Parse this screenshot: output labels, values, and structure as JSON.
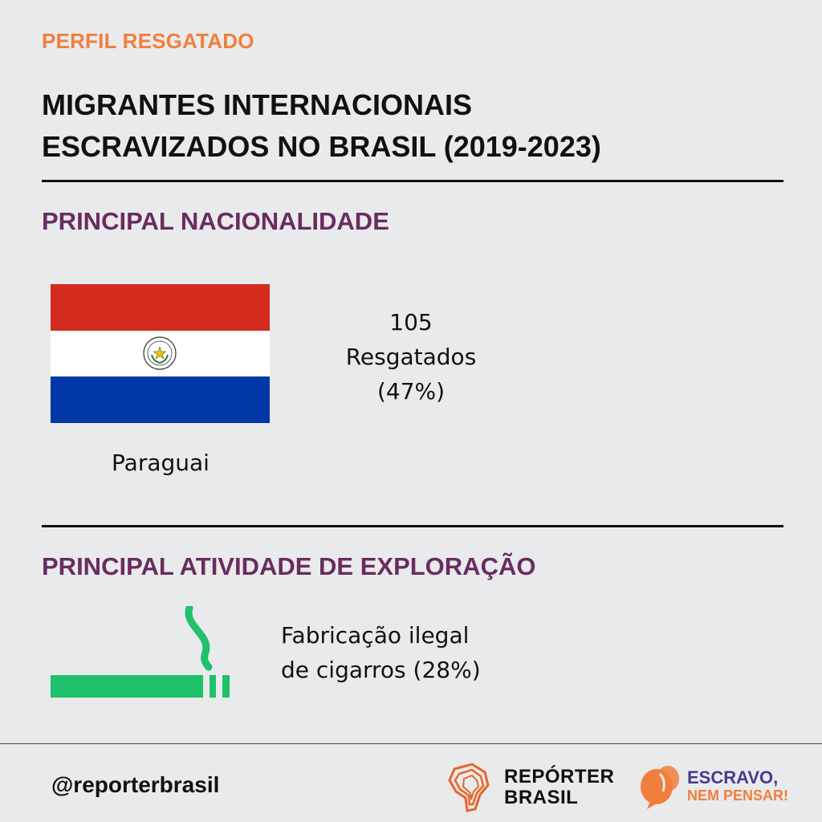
{
  "header": {
    "kicker": "PERFIL RESGATADO",
    "title_line1": "MIGRANTES INTERNACIONAIS",
    "title_line2": "ESCRAVIZADOS NO BRASIL (2019-2023)"
  },
  "nationality": {
    "heading": "PRINCIPAL NACIONALIDADE",
    "country": "Paraguai",
    "count": "105",
    "count_label": "Resgatados",
    "percent": "(47%)",
    "flag_colors": [
      "#d52b1e",
      "#ffffff",
      "#0038a8"
    ]
  },
  "activity": {
    "heading": "PRINCIPAL ATIVIDADE DE EXPLORAÇÃO",
    "line1": "Fabricação ilegal",
    "line2": "de cigarros (28%)",
    "icon": "cigarette-icon",
    "icon_color": "#1fc16b"
  },
  "footer": {
    "handle": "@reporterbrasil",
    "logo1_line1": "REPÓRTER",
    "logo1_line2": "BRASIL",
    "logo2_line1": "ESCRAVO,",
    "logo2_line2": "NEM PENSAR!"
  },
  "colors": {
    "background": "#e9eaec",
    "kicker": "#f07f3c",
    "section_heading": "#6a2c5f"
  }
}
